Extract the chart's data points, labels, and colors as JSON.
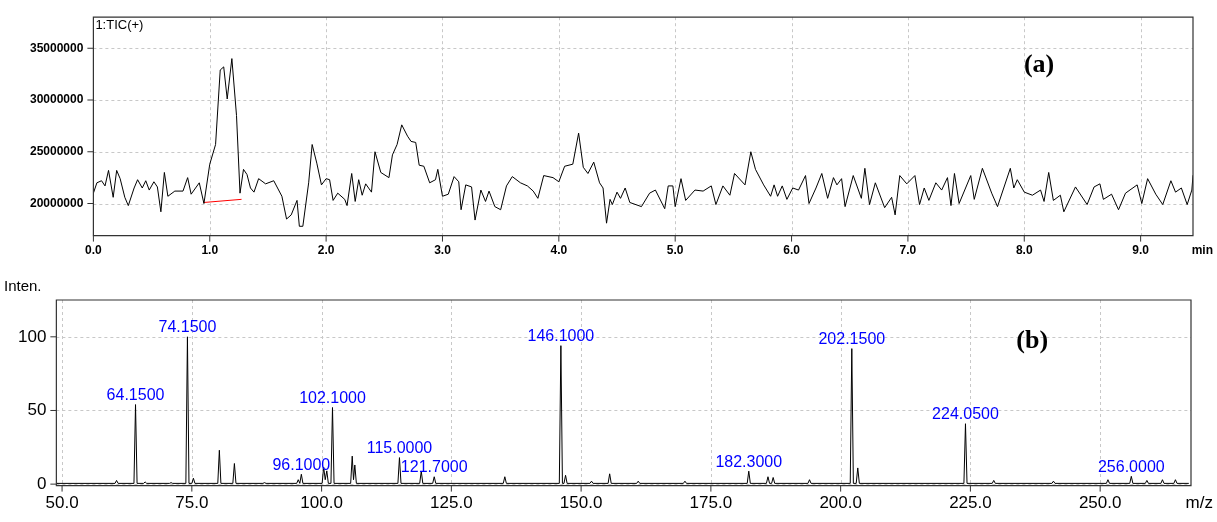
{
  "chart_data": [
    {
      "type": "line",
      "xlabel": "min",
      "annotations": [
        "1:TIC(+)",
        "(a)"
      ],
      "xlim": [
        0,
        9.45
      ],
      "ylim": [
        16900000,
        38000000
      ],
      "xticks": [
        {
          "value": 0,
          "label": "0.0"
        },
        {
          "value": 1,
          "label": "1.0"
        },
        {
          "value": 2,
          "label": "2.0"
        },
        {
          "value": 3,
          "label": "3.0"
        },
        {
          "value": 4,
          "label": "4.0"
        },
        {
          "value": 5,
          "label": "5.0"
        },
        {
          "value": 6,
          "label": "6.0"
        },
        {
          "value": 7,
          "label": "7.0"
        },
        {
          "value": 8,
          "label": "8.0"
        },
        {
          "value": 9,
          "label": "9.0"
        }
      ],
      "yticks": [
        20000000,
        25000000,
        30000000,
        35000000
      ],
      "grid": true,
      "series": [
        {
          "color": "#000000",
          "x": [
            0,
            0.03,
            0.07,
            0.1,
            0.13,
            0.17,
            0.2,
            0.23,
            0.27,
            0.3,
            0.35,
            0.38,
            0.42,
            0.45,
            0.48,
            0.52,
            0.55,
            0.58,
            0.61,
            0.64,
            0.7,
            0.77,
            0.81,
            0.84,
            0.91,
            0.95,
            1,
            1.05,
            1.09,
            1.12,
            1.15,
            1.19,
            1.23,
            1.26,
            1.29,
            1.32,
            1.35,
            1.38,
            1.42,
            1.48,
            1.55,
            1.62,
            1.66,
            1.7,
            1.75,
            1.77,
            1.8,
            1.85,
            1.88,
            1.92,
            1.96,
            2,
            2.03,
            2.06,
            2.1,
            2.16,
            2.18,
            2.22,
            2.25,
            2.28,
            2.31,
            2.34,
            2.39,
            2.42,
            2.47,
            2.54,
            2.57,
            2.61,
            2.65,
            2.7,
            2.73,
            2.77,
            2.8,
            2.84,
            2.89,
            2.94,
            2.96,
            3,
            3.05,
            3.1,
            3.14,
            3.16,
            3.2,
            3.25,
            3.28,
            3.33,
            3.37,
            3.4,
            3.45,
            3.5,
            3.55,
            3.6,
            3.67,
            3.73,
            3.78,
            3.82,
            3.87,
            3.95,
            4,
            4.05,
            4.12,
            4.17,
            4.21,
            4.25,
            4.3,
            4.35,
            4.38,
            4.41,
            4.44,
            4.46,
            4.5,
            4.53,
            4.57,
            4.61,
            4.71,
            4.78,
            4.83,
            4.91,
            4.94,
            4.98,
            5,
            5.05,
            5.09,
            5.17,
            5.24,
            5.31,
            5.35,
            5.41,
            5.47,
            5.51,
            5.6,
            5.65,
            5.69,
            5.76,
            5.82,
            5.85,
            5.88,
            5.92,
            5.96,
            6.01,
            6.06,
            6.12,
            6.15,
            6.21,
            6.26,
            6.31,
            6.36,
            6.39,
            6.43,
            6.46,
            6.53,
            6.6,
            6.63,
            6.67,
            6.72,
            6.8,
            6.86,
            6.89,
            6.93,
            6.99,
            7.06,
            7.1,
            7.14,
            7.18,
            7.24,
            7.29,
            7.34,
            7.37,
            7.4,
            7.44,
            7.54,
            7.57,
            7.64,
            7.72,
            7.77,
            7.88,
            7.91,
            7.94,
            8,
            8.07,
            8.14,
            8.17,
            8.21,
            8.25,
            8.31,
            8.34,
            8.44,
            8.54,
            8.6,
            8.65,
            8.68,
            8.75,
            8.81,
            8.87,
            8.97,
            9.01,
            9.06,
            9.13,
            9.19,
            9.26,
            9.3,
            9.35,
            9.4,
            9.44,
            9.45
          ],
          "values": [
            21000000,
            22000000,
            22200000,
            21700000,
            23200000,
            20600000,
            23200000,
            22400000,
            20600000,
            19800000,
            21500000,
            22300000,
            21500000,
            22200000,
            21300000,
            22100000,
            21600000,
            19200000,
            23000000,
            20700000,
            21200000,
            21200000,
            22500000,
            20900000,
            22000000,
            20000000,
            23800000,
            25700000,
            32900000,
            33200000,
            30100000,
            34000000,
            28500000,
            21000000,
            23300000,
            22800000,
            21500000,
            21100000,
            22400000,
            21900000,
            22200000,
            20700000,
            18500000,
            18900000,
            20300000,
            17800000,
            17800000,
            22000000,
            25700000,
            23900000,
            21800000,
            22400000,
            22300000,
            20300000,
            21000000,
            20400000,
            19800000,
            22900000,
            20200000,
            22300000,
            20800000,
            21900000,
            21100000,
            25000000,
            23000000,
            22500000,
            24700000,
            25700000,
            27600000,
            26500000,
            26000000,
            25900000,
            23700000,
            23600000,
            22000000,
            22300000,
            23300000,
            20700000,
            20900000,
            22600000,
            22100000,
            19400000,
            21800000,
            21600000,
            18400000,
            21300000,
            20200000,
            21200000,
            19700000,
            19400000,
            21700000,
            22600000,
            22000000,
            21700000,
            21200000,
            20500000,
            22700000,
            22500000,
            22100000,
            23600000,
            23800000,
            26800000,
            23500000,
            22900000,
            24000000,
            22000000,
            21500000,
            18100000,
            20400000,
            19900000,
            21100000,
            20500000,
            21500000,
            20100000,
            19700000,
            21000000,
            21300000,
            19500000,
            21700000,
            21700000,
            19700000,
            22400000,
            20300000,
            21300000,
            21200000,
            21700000,
            19900000,
            21700000,
            20800000,
            22900000,
            21800000,
            25000000,
            23300000,
            21800000,
            20700000,
            21800000,
            20700000,
            21700000,
            20400000,
            21500000,
            21300000,
            22700000,
            20000000,
            21500000,
            22900000,
            20500000,
            22500000,
            21800000,
            22400000,
            19700000,
            22700000,
            20500000,
            23400000,
            19900000,
            22000000,
            19600000,
            20600000,
            18900000,
            22700000,
            21900000,
            22700000,
            19900000,
            21500000,
            20300000,
            22000000,
            21300000,
            22500000,
            19800000,
            22900000,
            20000000,
            22700000,
            20400000,
            23400000,
            21000000,
            19700000,
            23400000,
            21500000,
            22300000,
            21100000,
            20800000,
            21300000,
            20200000,
            23000000,
            20300000,
            20800000,
            19200000,
            21600000,
            19900000,
            21600000,
            21900000,
            20400000,
            20900000,
            19400000,
            21000000,
            21800000,
            20000000,
            22400000,
            20900000,
            19900000,
            22200000,
            21100000,
            21500000,
            19900000,
            21300000,
            22700000
          ]
        },
        {
          "color": "#ff0000",
          "x": [
            0.95,
            1.27
          ],
          "values": [
            20100000,
            20400000
          ]
        }
      ]
    },
    {
      "type": "line",
      "xlabel": "m/z",
      "ylabel": "Inten.",
      "xlim": [
        48.9,
        267.5
      ],
      "ylim": [
        -1,
        125
      ],
      "xticks": [
        {
          "value": 50,
          "label": "50.0"
        },
        {
          "value": 75,
          "label": "75.0"
        },
        {
          "value": 100,
          "label": "100.0"
        },
        {
          "value": 125,
          "label": "125.0"
        },
        {
          "value": 150,
          "label": "150.0"
        },
        {
          "value": 175,
          "label": "175.0"
        },
        {
          "value": 200,
          "label": "200.0"
        },
        {
          "value": 225,
          "label": "225.0"
        },
        {
          "value": 250,
          "label": "250.0"
        }
      ],
      "yticks": [
        0,
        50,
        100
      ],
      "grid": true,
      "annotations": [
        {
          "text": "64.1500",
          "x": 64.15,
          "y": 54
        },
        {
          "text": "74.1500",
          "x": 74.15,
          "y": 100
        },
        {
          "text": "96.1000",
          "x": 96.1,
          "y": 6.7
        },
        {
          "text": "102.1000",
          "x": 102.1,
          "y": 52
        },
        {
          "text": "115.0000",
          "x": 115,
          "y": 18
        },
        {
          "text": "121.7000",
          "x": 121.7,
          "y": 5
        },
        {
          "text": "146.1000",
          "x": 146.1,
          "y": 94
        },
        {
          "text": "182.3000",
          "x": 182.3,
          "y": 8.8
        },
        {
          "text": "202.1500",
          "x": 202.15,
          "y": 92
        },
        {
          "text": "224.0500",
          "x": 224.05,
          "y": 41
        },
        {
          "text": "256.0000",
          "x": 256,
          "y": 5.3
        },
        "(b)"
      ],
      "series": [
        {
          "color": "#000000",
          "x": [
            49,
            60.2,
            60.5,
            60.8,
            63.85,
            64.15,
            64.45,
            65.7,
            66,
            66.3,
            70.7,
            71,
            71.3,
            73.85,
            74.15,
            74.45,
            75,
            75.3,
            75.6,
            80,
            80.3,
            80.6,
            82.9,
            83.2,
            83.5,
            88.7,
            89,
            89.3,
            95.2,
            95.5,
            95.8,
            96.1,
            96.4,
            100.1,
            100.4,
            100.7,
            101,
            101.3,
            101.8,
            102.1,
            102.4,
            105.6,
            105.9,
            106.15,
            106.4,
            106.7,
            114.7,
            115,
            115.3,
            118.9,
            119.2,
            119.5,
            121.4,
            121.7,
            122,
            135,
            135.3,
            135.6,
            145.8,
            146.1,
            146.4,
            146.7,
            147,
            147.3,
            151.7,
            152,
            152.3,
            155.2,
            155.5,
            155.8,
            160.7,
            161,
            161.3,
            169.7,
            170,
            170.3,
            182,
            182.3,
            182.6,
            185.7,
            186,
            186.3,
            186.7,
            187,
            187.3,
            193.7,
            194,
            194.3,
            201.85,
            202.15,
            202.45,
            203,
            203.3,
            203.6,
            223.75,
            224.05,
            224.35,
            229.2,
            229.5,
            229.8,
            240.7,
            241,
            241.3,
            251.2,
            251.5,
            251.8,
            255.7,
            256,
            256.3,
            258.7,
            259,
            259.3,
            261.7,
            262,
            262.3,
            264.2,
            264.5,
            264.8,
            267
          ],
          "values": [
            0.5,
            0.5,
            2.5,
            0.5,
            0.5,
            54,
            0.5,
            0.5,
            1.5,
            0.5,
            0.5,
            1,
            0.5,
            0.5,
            100,
            0.5,
            0.5,
            4,
            0.5,
            0.5,
            23,
            0.5,
            0.5,
            14,
            0.5,
            0.5,
            1,
            0.5,
            0.5,
            3,
            0.5,
            6.7,
            0.5,
            0.5,
            11.5,
            3,
            9,
            0.5,
            0.5,
            52,
            0.5,
            0.5,
            19,
            3,
            13,
            0.5,
            0.5,
            18,
            0.5,
            0.5,
            8.8,
            0.5,
            0.5,
            5,
            0.5,
            0.5,
            5,
            0.5,
            0.5,
            94,
            0.5,
            0.5,
            6,
            0.5,
            0.5,
            2,
            0.5,
            0.5,
            7,
            0.5,
            0.5,
            2,
            0.5,
            0.5,
            2,
            0.5,
            0.5,
            8.8,
            0.5,
            0.5,
            5,
            0.5,
            0.5,
            4.5,
            0.5,
            0.5,
            3,
            0.5,
            0.5,
            92,
            0.5,
            0.5,
            11,
            0.5,
            0.5,
            41,
            0.5,
            0.5,
            2.5,
            0.5,
            0.5,
            2,
            0.5,
            0.5,
            3,
            0.5,
            0.5,
            5.3,
            0.5,
            0.5,
            2.5,
            0.5,
            0.5,
            3,
            0.5,
            0.5,
            3,
            0.5,
            0.5
          ]
        }
      ]
    }
  ]
}
